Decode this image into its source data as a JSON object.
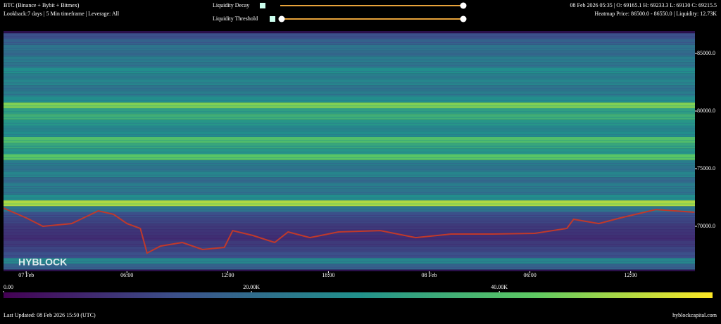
{
  "header": {
    "title": "BTC (Binance + Bybit + Bitmex)",
    "subtitle": "Lookback:7 days | 5 Min timeframe | Leverage: All",
    "ohlc": "08 Feb 2026 05:35 | O: 69165.1 H: 69233.3 L: 69130 C: 69215.5",
    "heatmap_info": "Heatmap Price: 86500.0 - 86550.0 | Liquidity: 12.73K"
  },
  "controls": [
    {
      "label": "Liquidity Decay"
    },
    {
      "label": "Liquidity Threshold"
    }
  ],
  "watermark": "HYBLOCK",
  "footer": {
    "updated": "Last Updated: 08 Feb 2026 15:50 (UTC)",
    "site": "hyblockcapital.com"
  },
  "chart_data": {
    "type": "heatmap",
    "xlim": [
      -1.35,
      39.83
    ],
    "xticks": [
      {
        "value": 0,
        "label": "07 Feb"
      },
      {
        "value": 6,
        "label": "06:00"
      },
      {
        "value": 12,
        "label": "12:00"
      },
      {
        "value": 18,
        "label": "18:00"
      },
      {
        "value": 24,
        "label": "08 Feb"
      },
      {
        "value": 30,
        "label": "06:00"
      },
      {
        "value": 36,
        "label": "12:00"
      }
    ],
    "ylim": [
      66098,
      86951
    ],
    "yticks": [
      {
        "value": 70000,
        "label": "70000.0"
      },
      {
        "value": 75000,
        "label": "75000.0"
      },
      {
        "value": 80000,
        "label": "80000.0"
      },
      {
        "value": 85000,
        "label": "85000.0"
      }
    ],
    "price_levels": [
      66500,
      67000,
      67500,
      68000,
      68500,
      69000,
      69500,
      70000,
      70500,
      71000,
      71500,
      72000,
      72500,
      73000,
      73500,
      74000,
      74500,
      75000,
      75500,
      76000,
      76500,
      77000,
      77500,
      78000,
      78500,
      79000,
      79500,
      80000,
      80500,
      81000,
      81500,
      82000,
      82500,
      83000,
      83500,
      84000,
      84500,
      85000,
      85500,
      86000,
      86500
    ],
    "liquidity": [
      18000,
      26000,
      14000,
      12000,
      10000,
      8000,
      9000,
      10000,
      12000,
      14000,
      22000,
      50000,
      28000,
      22000,
      24000,
      20000,
      26000,
      22000,
      24000,
      42000,
      30000,
      34000,
      40000,
      28000,
      26000,
      30000,
      36000,
      32000,
      46000,
      28000,
      24000,
      22000,
      26000,
      24000,
      28000,
      22000,
      24000,
      20000,
      22000,
      18000,
      14000
    ],
    "colorscale": [
      "#440154",
      "#3b528b",
      "#21918c",
      "#5ec962",
      "#fde725"
    ],
    "clim": [
      0,
      57200
    ],
    "cticks": [
      {
        "value": 0,
        "label": "0.00"
      },
      {
        "value": 20000,
        "label": "20.00K"
      },
      {
        "value": 40000,
        "label": "40.00K"
      }
    ],
    "price": {
      "color": "#c0392b",
      "x": [
        -1.35,
        0,
        1,
        2.7,
        4.3,
        5.2,
        6,
        6.8,
        7.2,
        8,
        9.3,
        10.5,
        11.8,
        12.3,
        13.5,
        14.8,
        15.6,
        16.9,
        18.6,
        21.1,
        23.2,
        25.3,
        27.8,
        30.3,
        32.2,
        32.6,
        34.1,
        35.4,
        37.5,
        39.8
      ],
      "values": [
        71585,
        70730,
        70000,
        70240,
        71340,
        71040,
        70240,
        69820,
        67680,
        68290,
        68600,
        67990,
        68170,
        69630,
        69210,
        68600,
        69510,
        69020,
        69510,
        69630,
        69020,
        69330,
        69330,
        69390,
        69820,
        70610,
        70240,
        70730,
        71460,
        71220
      ]
    }
  }
}
